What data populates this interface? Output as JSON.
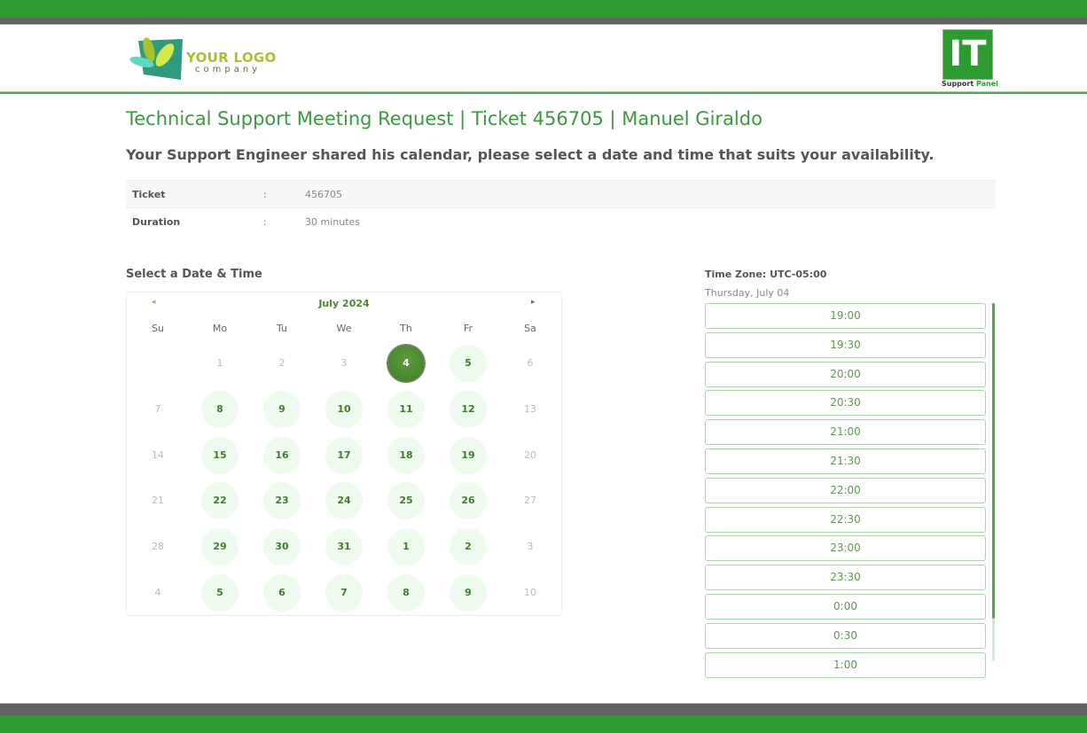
{
  "header": {
    "logo_text": "YOUR LOGO",
    "logo_sub": "company",
    "badge": "IT",
    "badge_sub1": "Support",
    "badge_sub2": "Panel"
  },
  "title": "Technical Support Meeting Request | Ticket 456705 | Manuel Giraldo",
  "subtitle": "Your Support Engineer shared his calendar, please select a date and time that suits your availability.",
  "info": [
    {
      "label": "Ticket",
      "sep": ":",
      "value": "456705"
    },
    {
      "label": "Duration",
      "sep": ":",
      "value": "30 minutes"
    }
  ],
  "select_label": "Select a Date & Time",
  "calendar": {
    "month": "July 2024",
    "prev": "◂",
    "next": "▸",
    "weekdays": [
      "Su",
      "Mo",
      "Tu",
      "We",
      "Th",
      "Fr",
      "Sa"
    ],
    "weeks": [
      [
        null,
        {
          "d": "1",
          "s": "m"
        },
        {
          "d": "2",
          "s": "m"
        },
        {
          "d": "3",
          "s": "m"
        },
        {
          "d": "4",
          "s": "s"
        },
        {
          "d": "5",
          "s": "a"
        },
        {
          "d": "6",
          "s": "m"
        }
      ],
      [
        {
          "d": "7",
          "s": "m"
        },
        {
          "d": "8",
          "s": "a"
        },
        {
          "d": "9",
          "s": "a"
        },
        {
          "d": "10",
          "s": "a"
        },
        {
          "d": "11",
          "s": "a"
        },
        {
          "d": "12",
          "s": "a"
        },
        {
          "d": "13",
          "s": "m"
        }
      ],
      [
        {
          "d": "14",
          "s": "m"
        },
        {
          "d": "15",
          "s": "a"
        },
        {
          "d": "16",
          "s": "a"
        },
        {
          "d": "17",
          "s": "a"
        },
        {
          "d": "18",
          "s": "a"
        },
        {
          "d": "19",
          "s": "a"
        },
        {
          "d": "20",
          "s": "m"
        }
      ],
      [
        {
          "d": "21",
          "s": "m"
        },
        {
          "d": "22",
          "s": "a"
        },
        {
          "d": "23",
          "s": "a"
        },
        {
          "d": "24",
          "s": "a"
        },
        {
          "d": "25",
          "s": "a"
        },
        {
          "d": "26",
          "s": "a"
        },
        {
          "d": "27",
          "s": "m"
        }
      ],
      [
        {
          "d": "28",
          "s": "m"
        },
        {
          "d": "29",
          "s": "a"
        },
        {
          "d": "30",
          "s": "a"
        },
        {
          "d": "31",
          "s": "a"
        },
        {
          "d": "1",
          "s": "a"
        },
        {
          "d": "2",
          "s": "a"
        },
        {
          "d": "3",
          "s": "m"
        }
      ],
      [
        {
          "d": "4",
          "s": "m"
        },
        {
          "d": "5",
          "s": "a"
        },
        {
          "d": "6",
          "s": "a"
        },
        {
          "d": "7",
          "s": "a"
        },
        {
          "d": "8",
          "s": "a"
        },
        {
          "d": "9",
          "s": "a"
        },
        {
          "d": "10",
          "s": "m"
        }
      ]
    ]
  },
  "timezone": "Time Zone: UTC-05:00",
  "selected_date": "Thursday, July 04",
  "slots": [
    "19:00",
    "19:30",
    "20:00",
    "20:30",
    "21:00",
    "21:30",
    "22:00",
    "22:30",
    "23:00",
    "23:30",
    "0:00",
    "0:30",
    "1:00"
  ],
  "colors": {
    "brand": "#2e9a32",
    "selected": "#4a8a2e",
    "available_bg": "#eefbee"
  }
}
